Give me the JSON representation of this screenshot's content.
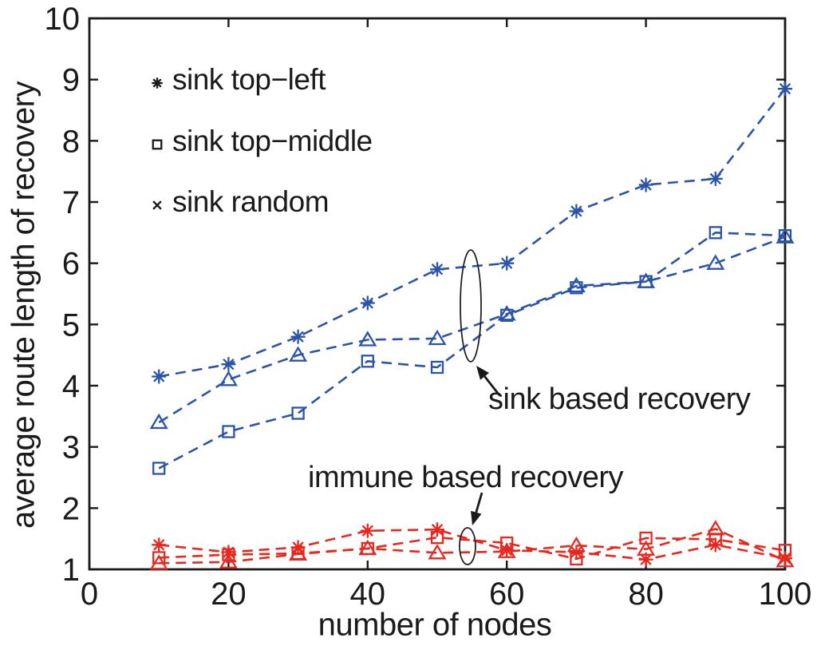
{
  "chart_data": {
    "type": "line",
    "title": "",
    "xlabel": "number of nodes",
    "ylabel": "average route length of recovery",
    "xlim": [
      0,
      100
    ],
    "ylim": [
      1,
      10
    ],
    "xticks": [
      0,
      20,
      40,
      60,
      80,
      100
    ],
    "yticks": [
      1,
      2,
      3,
      4,
      5,
      6,
      7,
      8,
      9,
      10
    ],
    "grid": false,
    "legend_position": "inside top-left",
    "x": [
      10,
      20,
      30,
      40,
      50,
      60,
      70,
      80,
      90,
      100
    ],
    "series": [
      {
        "name": "sink top−left",
        "group": "sink based recovery",
        "marker": "asterisk",
        "linestyle": "dashed",
        "color": "#2b54a8",
        "values": [
          4.15,
          4.35,
          4.8,
          5.35,
          5.9,
          6.0,
          6.85,
          7.28,
          7.38,
          8.85
        ]
      },
      {
        "name": "sink top−middle",
        "group": "sink based recovery",
        "marker": "square",
        "linestyle": "dashed",
        "color": "#2b54a8",
        "values": [
          2.65,
          3.25,
          3.55,
          4.4,
          4.3,
          5.15,
          5.6,
          5.7,
          6.5,
          6.45
        ]
      },
      {
        "name": "sink random",
        "group": "sink based recovery",
        "marker": "triangle",
        "linestyle": "dashed",
        "color": "#2b54a8",
        "values": [
          3.4,
          4.1,
          4.5,
          4.75,
          4.77,
          5.17,
          5.63,
          5.7,
          6.0,
          6.43
        ]
      },
      {
        "name": "sink top−left",
        "group": "immune based recovery",
        "marker": "asterisk",
        "linestyle": "dashed",
        "color": "#e8271f",
        "values": [
          1.4,
          1.28,
          1.36,
          1.63,
          1.65,
          1.31,
          1.28,
          1.16,
          1.4,
          1.18
        ]
      },
      {
        "name": "sink top−middle",
        "group": "immune based recovery",
        "marker": "square",
        "linestyle": "dashed",
        "color": "#e8271f",
        "values": [
          1.19,
          1.24,
          1.26,
          1.34,
          1.52,
          1.43,
          1.17,
          1.51,
          1.49,
          1.31
        ]
      },
      {
        "name": "sink random",
        "group": "immune based recovery",
        "marker": "triangle",
        "linestyle": "dashed",
        "color": "#e8271f",
        "values": [
          1.1,
          1.12,
          1.25,
          1.34,
          1.27,
          1.29,
          1.39,
          1.33,
          1.66,
          1.14
        ]
      }
    ]
  },
  "legend": {
    "items": [
      {
        "marker": "asterisk",
        "label": "sink top−left"
      },
      {
        "marker": "square",
        "label": "sink top−middle"
      },
      {
        "marker": "x",
        "label": "sink random"
      }
    ]
  },
  "annotations": {
    "sink": {
      "text": "sink based recovery"
    },
    "immune": {
      "text": "immune based recovery"
    }
  },
  "colors": {
    "sink_series": "#2b54a8",
    "immune_series": "#e8271f",
    "axis": "#1a1a1a"
  }
}
